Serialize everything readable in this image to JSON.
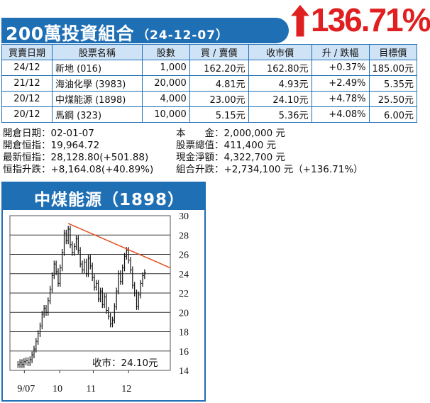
{
  "header": {
    "title": "200萬投資組合",
    "date": "（24-12-07）",
    "return_pct": "136.71%",
    "accent_color": "#1f6fb5",
    "return_color": "#e02020",
    "arrow_icon": "up-arrow-icon"
  },
  "table": {
    "columns": [
      "買賣日期",
      "股票名稱",
      "股數",
      "買 / 賣價",
      "收市價",
      "升 / 跌幅",
      "目標價"
    ],
    "rows": [
      [
        "24/12",
        "新地 (016)",
        "1,000",
        "162.20元",
        "162.80元",
        "+0.37%",
        "185.00元"
      ],
      [
        "21/12",
        "海油化學 (3983)",
        "20,000",
        "4.81元",
        "4.93元",
        "+2.49%",
        "5.35元"
      ],
      [
        "20/12",
        "中煤能源 (1898)",
        "4,000",
        "23.00元",
        "24.10元",
        "+4.78%",
        "25.50元"
      ],
      [
        "20/12",
        "馬鋼 (323)",
        "10,000",
        "5.15元",
        "5.36元",
        "+4.08%",
        "6.00元"
      ]
    ]
  },
  "info": {
    "left": [
      {
        "label": "開倉日期",
        "value": "：02-01-07"
      },
      {
        "label": "開倉恒指",
        "value": "：19,964.72"
      },
      {
        "label": "最新恒指",
        "value": "：28,128.80(+501.88)"
      },
      {
        "label": "恒指升跌",
        "value": "：+8,164.08(+40.89%)"
      }
    ],
    "right": [
      {
        "label": "本　　金",
        "value": "：2,000,000 元"
      },
      {
        "label": "股票總值",
        "value": "：411,400 元"
      },
      {
        "label": "現金淨額",
        "value": "：4,322,700 元"
      },
      {
        "label": "組合升跌",
        "value": "：+2,734,100 元（+136.71%）"
      }
    ]
  },
  "chart_data": {
    "type": "line",
    "title": "中煤能源（1898）",
    "annotation": "收市：24.10元",
    "x_tick_labels": [
      "9/07",
      "10",
      "11",
      "12"
    ],
    "y_tick_labels": [
      "14",
      "16",
      "18",
      "20",
      "22",
      "24",
      "26",
      "28",
      "30"
    ],
    "ylim": [
      14,
      30
    ],
    "grid": true,
    "series": [
      {
        "values": [
          14.6,
          14.8,
          14.6,
          14.9,
          15.0,
          14.8,
          15.1,
          15.6,
          16.2,
          17.0,
          17.8,
          18.6,
          19.8,
          20.4,
          20.0,
          21.2,
          22.4,
          23.8,
          25.0,
          24.2,
          23.0,
          24.6,
          26.2,
          28.2,
          27.4,
          28.6,
          27.0,
          26.2,
          26.8,
          27.6,
          26.4,
          25.0,
          24.4,
          25.2,
          24.0,
          25.6,
          24.8,
          23.6,
          22.6,
          23.0,
          21.4,
          22.2,
          20.8,
          21.6,
          20.2,
          19.6,
          18.8,
          19.2,
          20.6,
          22.2,
          24.0,
          23.2,
          24.6,
          25.8,
          26.4,
          25.4,
          24.4,
          22.8,
          22.0,
          20.6,
          21.8,
          23.0,
          23.8,
          24.1
        ]
      }
    ],
    "trendline": {
      "start": 29.2,
      "end": 24.6,
      "color": "#e05020"
    }
  }
}
